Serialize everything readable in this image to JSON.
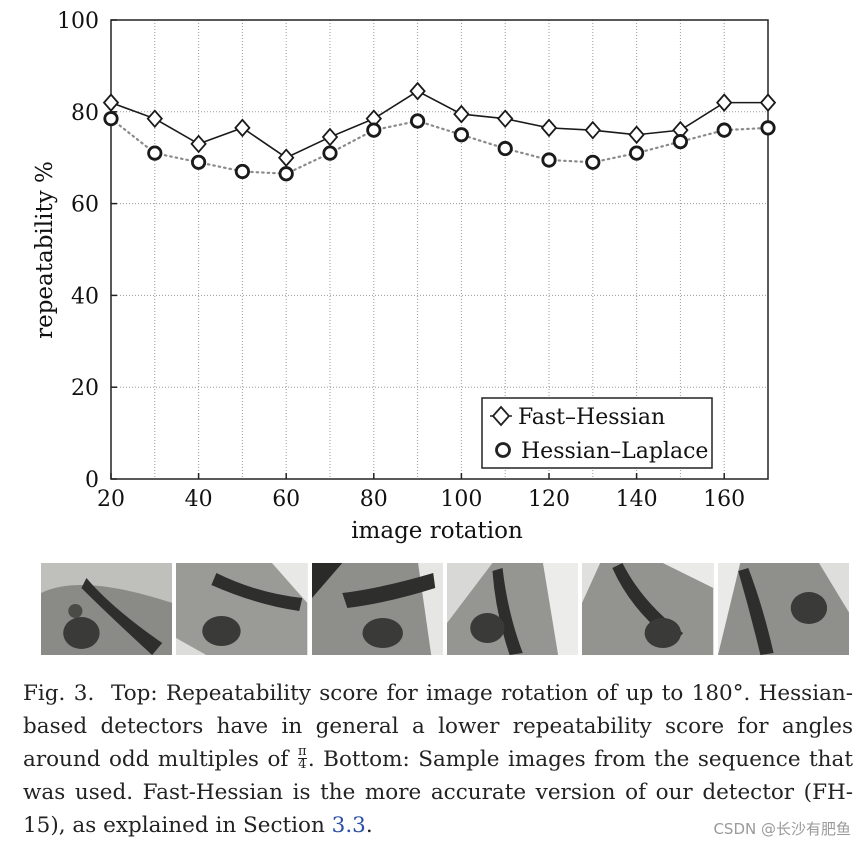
{
  "chart_data": {
    "type": "line",
    "title": "",
    "xlabel": "image rotation",
    "ylabel": "repeatability %",
    "x": [
      20,
      30,
      40,
      50,
      60,
      70,
      80,
      90,
      100,
      110,
      120,
      130,
      140,
      150,
      160,
      170
    ],
    "xlim": [
      20,
      170
    ],
    "ylim": [
      0,
      100
    ],
    "xticks": [
      20,
      40,
      60,
      80,
      100,
      120,
      140,
      160
    ],
    "yticks": [
      0,
      20,
      40,
      60,
      80,
      100
    ],
    "grid": true,
    "legend_position": "bottom-right",
    "series": [
      {
        "name": "Fast–Hessian",
        "marker": "diamond",
        "line": "solid",
        "values": [
          82,
          78.5,
          73,
          76.5,
          70,
          74.5,
          78.5,
          84.5,
          79.5,
          78.5,
          76.5,
          76,
          75,
          76,
          82,
          82
        ]
      },
      {
        "name": "Hessian–Laplace",
        "marker": "circle",
        "line": "dotted",
        "values": [
          78.5,
          71,
          69,
          67,
          66.5,
          71,
          76,
          78,
          75,
          72,
          69.5,
          69,
          71,
          73.5,
          76,
          76.5
        ]
      }
    ]
  },
  "caption": {
    "fig_label": "Fig. 3.",
    "part1": "Top: Repeatability score for image rotation of up to 180°. Hessian-based detectors have in general a lower repeatability score for angles around odd multiples of",
    "frac_num": "π",
    "frac_den": "4",
    "part2": ". Bottom: Sample images from the sequence that was used. Fast-Hessian is the more accurate version of our detector (FH-15), as explained in Section",
    "section_ref": "3.3",
    "part3": "."
  },
  "sample_images": [
    {
      "label": "sample-1"
    },
    {
      "label": "sample-2"
    },
    {
      "label": "sample-3"
    },
    {
      "label": "sample-4"
    },
    {
      "label": "sample-5"
    },
    {
      "label": "sample-6"
    }
  ],
  "watermark": "CSDN @长沙有肥鱼"
}
